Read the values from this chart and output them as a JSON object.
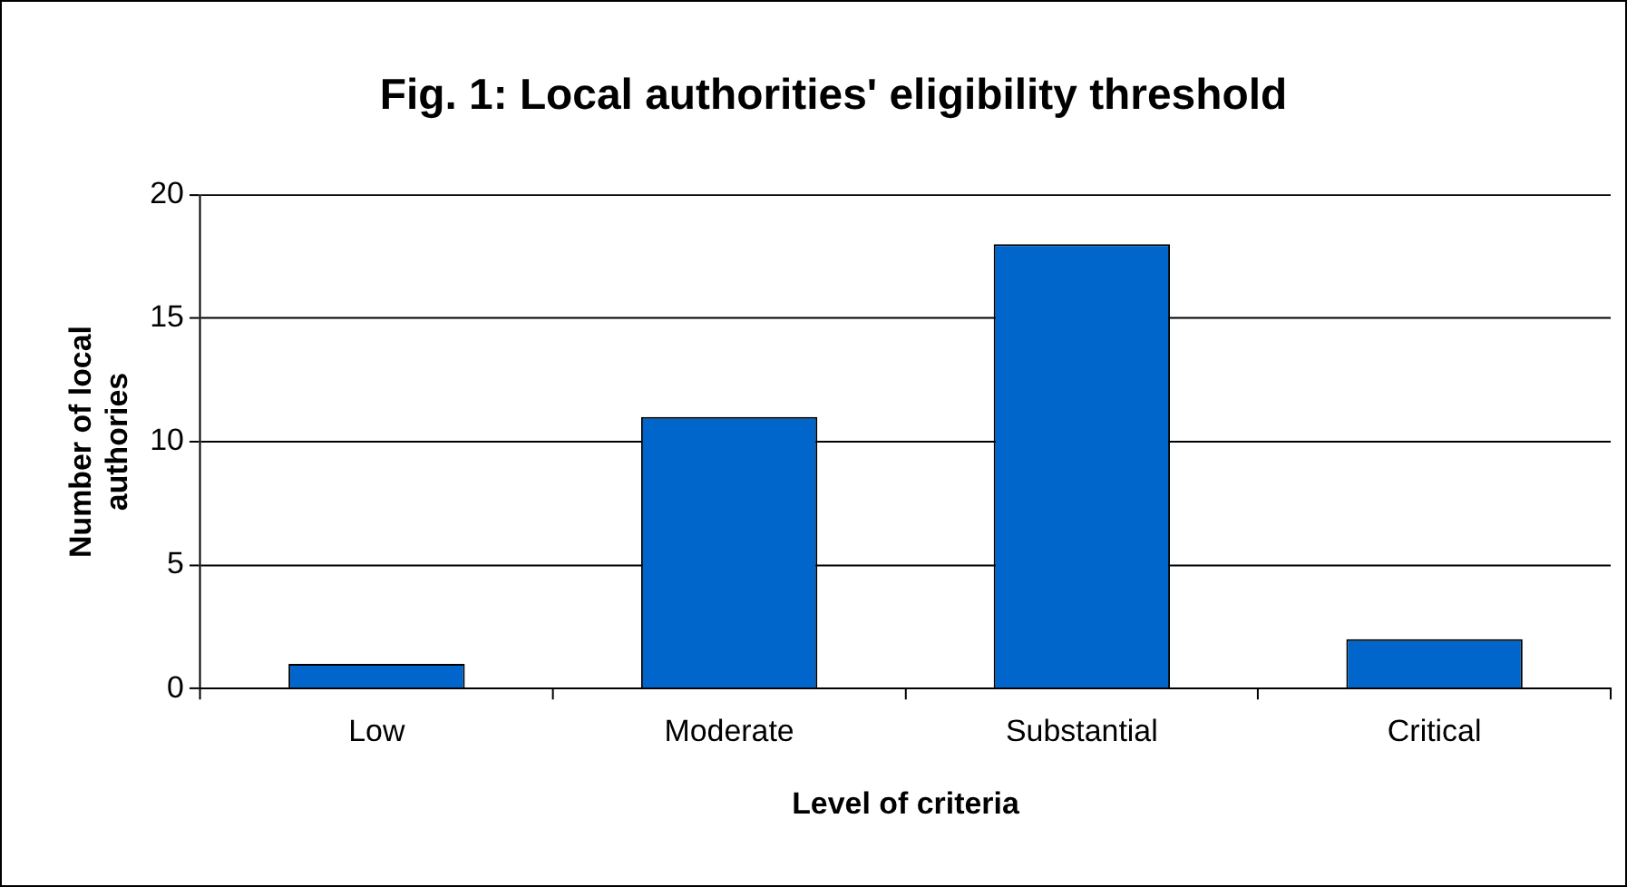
{
  "chart_data": {
    "type": "bar",
    "title": "Fig. 1: Local authorities' eligibility threshold",
    "xlabel": "Level of criteria",
    "ylabel": "Number of local authories",
    "categories": [
      "Low",
      "Moderate",
      "Substantial",
      "Critical"
    ],
    "values": [
      1,
      11,
      18,
      2
    ],
    "color": "#0066cc",
    "ylim": [
      0,
      20
    ],
    "yticks": [
      0,
      5,
      10,
      15,
      20
    ],
    "grid": "y",
    "legend": false
  }
}
